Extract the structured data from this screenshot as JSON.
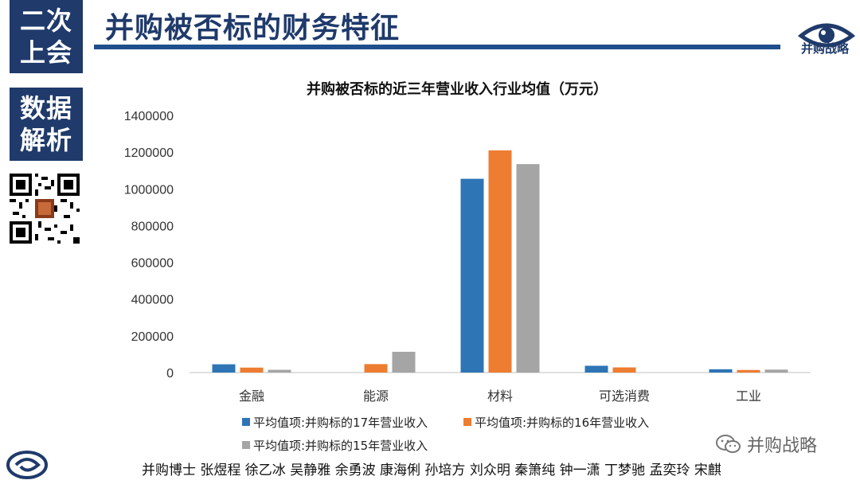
{
  "sidebar": {
    "top_lines": [
      "二次",
      "上会"
    ],
    "mid_lines": [
      "数据",
      "解析"
    ]
  },
  "header": {
    "title": "并购被否标的财务特征",
    "brand_text": "并购战略"
  },
  "chart_data": {
    "type": "bar",
    "title": "并购被否标的近三年营业收入行业均值（万元）",
    "categories": [
      "金融",
      "能源",
      "材料",
      "可选消费",
      "工业"
    ],
    "series": [
      {
        "name": "平均值项:并购标的17年营业收入",
        "color": "#2e75b6",
        "values": [
          45000,
          0,
          1055000,
          37000,
          18000
        ]
      },
      {
        "name": "平均值项:并购标的16年营业收入",
        "color": "#ed7d31",
        "values": [
          27000,
          46000,
          1210000,
          28000,
          14000
        ]
      },
      {
        "name": "平均值项:并购标的15年营业收入",
        "color": "#a5a5a5",
        "values": [
          15000,
          113000,
          1135000,
          0,
          16000
        ]
      }
    ],
    "yticks": [
      "0",
      "200000",
      "400000",
      "600000",
      "800000",
      "1000000",
      "1200000",
      "1400000"
    ],
    "ylim": [
      0,
      1400000
    ],
    "grid": false,
    "legend_position": "bottom"
  },
  "footer": {
    "authors": "并购博士 张煜程 徐乙冰 吴静雅 余勇波 康海俐 孙培方 刘众明 秦箫纯 钟一潇 丁梦驰 孟奕玲 宋麒",
    "wechat_name": "并购战略"
  },
  "icons": {
    "brand_eye": "eye-icon",
    "qr": "qr-code-icon",
    "bottom_logo": "swirl-logo-icon",
    "wechat": "wechat-icon"
  },
  "colors": {
    "navy": "#1f3a6b",
    "header_line": "#1f4e8c"
  }
}
